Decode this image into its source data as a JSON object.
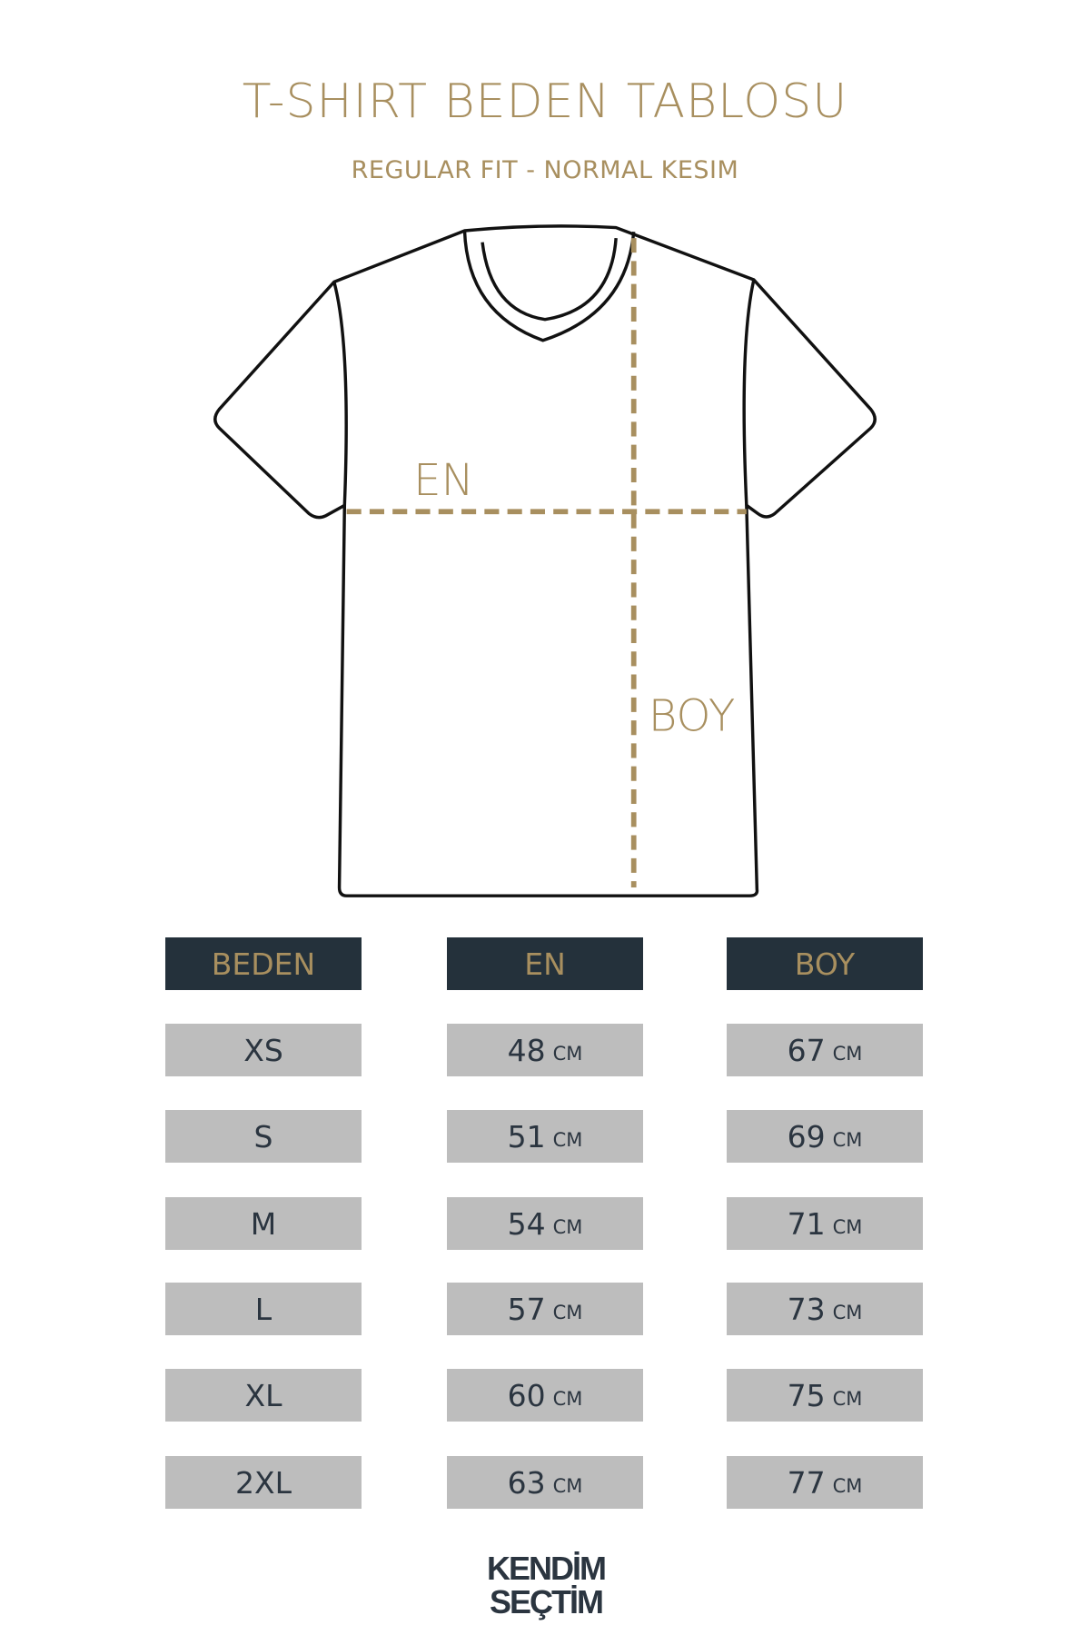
{
  "header": {
    "title": "T-SHIRT BEDEN TABLOSU",
    "subtitle": "REGULAR FIT - NORMAL KESIM"
  },
  "diagram": {
    "width_label": "EN",
    "length_label": "BOY",
    "accent_color": "#a88f5f"
  },
  "table": {
    "headers": [
      "BEDEN",
      "EN",
      "BOY"
    ],
    "unit": "CM",
    "rows": [
      {
        "size": "XS",
        "en": "48",
        "boy": "67"
      },
      {
        "size": "S",
        "en": "51",
        "boy": "69"
      },
      {
        "size": "M",
        "en": "54",
        "boy": "71"
      },
      {
        "size": "L",
        "en": "57",
        "boy": "73"
      },
      {
        "size": "XL",
        "en": "60",
        "boy": "75"
      },
      {
        "size": "2XL",
        "en": "63",
        "boy": "77"
      }
    ],
    "header_bg": "#24313b",
    "cell_bg": "#bdbdbd"
  },
  "logo": {
    "line1": "KENDİM",
    "line2": "SEÇTİM"
  }
}
